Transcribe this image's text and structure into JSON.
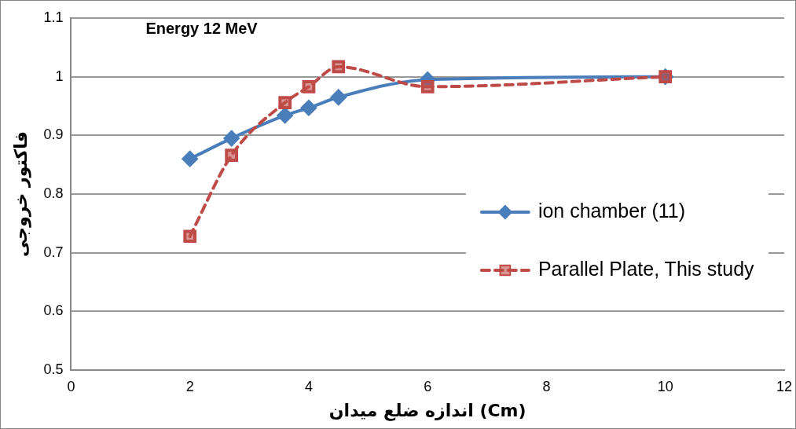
{
  "chart_data": {
    "type": "line",
    "title": "Energy 12 MeV",
    "xlabel": "اندازه ضلع میدان (Cm)",
    "ylabel": "فاکتور خروجی",
    "x": [
      2,
      2.7,
      3.6,
      4,
      4.5,
      6,
      10
    ],
    "series": [
      {
        "name": "ion chamber (11)",
        "color": "#4a7ebb",
        "values": [
          0.86,
          0.895,
          0.934,
          0.947,
          0.965,
          0.995,
          1.0
        ],
        "marker": "diamond",
        "line_style": "solid"
      },
      {
        "name": "Parallel Plate, This study",
        "color": "#be4b48",
        "values": [
          0.728,
          0.866,
          0.956,
          0.983,
          1.017,
          0.983,
          1.0
        ],
        "marker": "square",
        "line_style": "dashed"
      }
    ],
    "xlim": [
      0,
      12
    ],
    "xticks": [
      0,
      2,
      4,
      6,
      8,
      10,
      12
    ],
    "ylim": [
      0.5,
      1.1
    ],
    "yticks": [
      0.5,
      0.6,
      0.7,
      0.8,
      0.9,
      1,
      1.1
    ],
    "grid": "y",
    "legend": "right"
  }
}
